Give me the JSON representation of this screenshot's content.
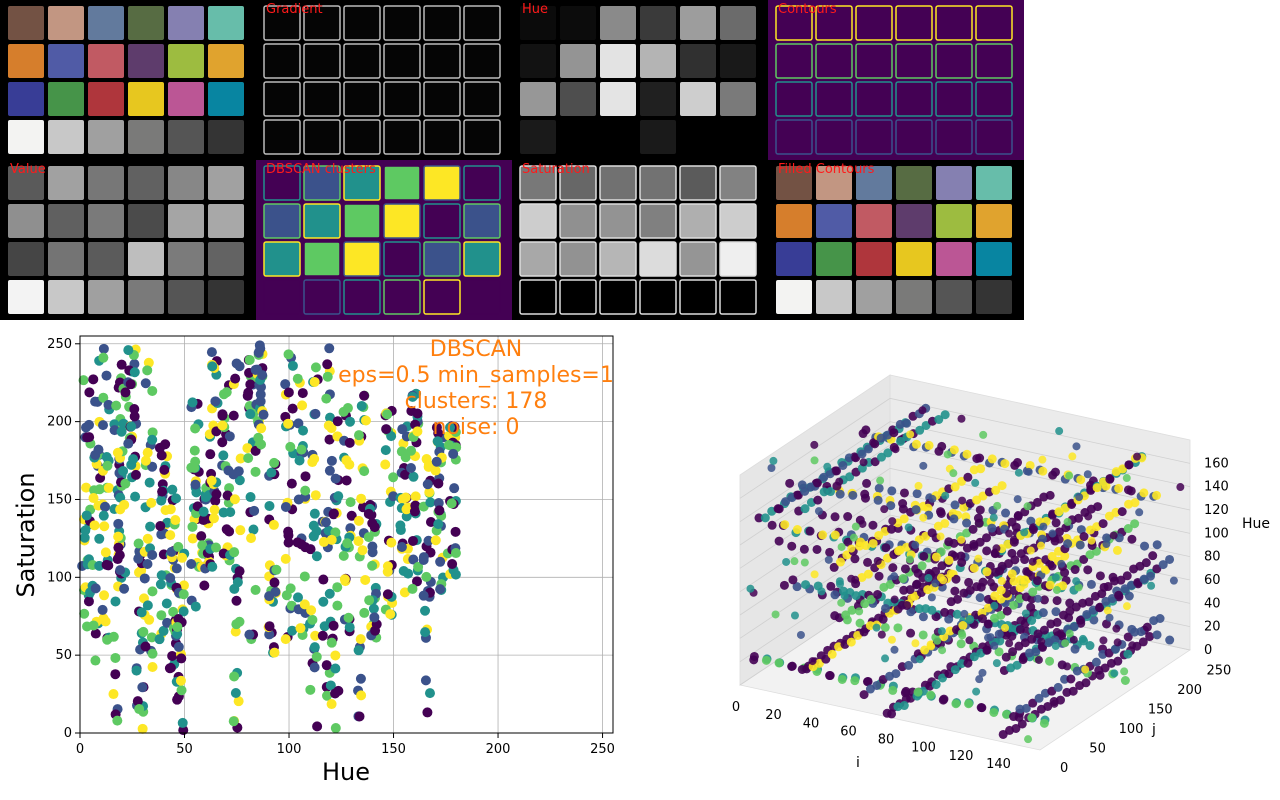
{
  "panels": [
    {
      "title": "",
      "kind": "original"
    },
    {
      "title": "Gradient",
      "kind": "gradient"
    },
    {
      "title": "Hue",
      "kind": "hue"
    },
    {
      "title": "Contours",
      "kind": "contours"
    },
    {
      "title": "Value",
      "kind": "value"
    },
    {
      "title": "DBSCAN clusters",
      "kind": "dbscan"
    },
    {
      "title": "Saturation",
      "kind": "saturation"
    },
    {
      "title": "Filled Contours",
      "kind": "filled"
    }
  ],
  "checker_colors": [
    "#735244",
    "#c29682",
    "#627a9d",
    "#576c43",
    "#8580b1",
    "#67bdaa",
    "#d67e2c",
    "#505ba6",
    "#c15a63",
    "#5e3c6c",
    "#9dbc40",
    "#e0a32e",
    "#383d96",
    "#469449",
    "#af363c",
    "#e7c71f",
    "#bb5695",
    "#0885a1",
    "#f3f3f2",
    "#c8c8c8",
    "#a0a0a0",
    "#7a7a79",
    "#555555",
    "#343434"
  ],
  "colors": {
    "panel_title": "#ff1a1a",
    "annotation": "#ff7f0e",
    "viridis": [
      "#440154",
      "#3b528b",
      "#21918c",
      "#5ec962",
      "#fde725"
    ]
  },
  "chart_data": [
    {
      "type": "scatter",
      "title": "",
      "xlabel": "Hue",
      "ylabel": "Saturation",
      "xlim": [
        0,
        255
      ],
      "ylim": [
        0,
        255
      ],
      "xticks": [
        0,
        50,
        100,
        150,
        200,
        250
      ],
      "yticks": [
        0,
        50,
        100,
        150,
        200,
        250
      ],
      "grid": true,
      "annotation": [
        "DBSCAN",
        "eps=0.5 min_samples=1",
        "clusters: 178",
        "noise: 0"
      ],
      "clusters": [
        {
          "hue": 3,
          "sat_range": [
            50,
            250
          ]
        },
        {
          "hue": 8,
          "sat_range": [
            45,
            240
          ]
        },
        {
          "hue": 12,
          "sat_range": [
            55,
            250
          ]
        },
        {
          "hue": 18,
          "sat_range": [
            0,
            245
          ]
        },
        {
          "hue": 20,
          "sat_range": [
            90,
            250
          ]
        },
        {
          "hue": 25,
          "sat_range": [
            150,
            250
          ]
        },
        {
          "hue": 29,
          "sat_range": [
            0,
            130
          ]
        },
        {
          "hue": 33,
          "sat_range": [
            40,
            240
          ]
        },
        {
          "hue": 40,
          "sat_range": [
            60,
            200
          ]
        },
        {
          "hue": 45,
          "sat_range": [
            40,
            170
          ]
        },
        {
          "hue": 48,
          "sat_range": [
            0,
            120
          ]
        },
        {
          "hue": 55,
          "sat_range": [
            80,
            220
          ]
        },
        {
          "hue": 60,
          "sat_range": [
            90,
            160
          ]
        },
        {
          "hue": 64,
          "sat_range": [
            100,
            250
          ]
        },
        {
          "hue": 70,
          "sat_range": [
            110,
            230
          ]
        },
        {
          "hue": 75,
          "sat_range": [
            0,
            240
          ]
        },
        {
          "hue": 82,
          "sat_range": [
            60,
            250
          ]
        },
        {
          "hue": 86,
          "sat_range": [
            180,
            250
          ]
        },
        {
          "hue": 92,
          "sat_range": [
            50,
            180
          ]
        },
        {
          "hue": 100,
          "sat_range": [
            60,
            250
          ]
        },
        {
          "hue": 106,
          "sat_range": [
            60,
            230
          ]
        },
        {
          "hue": 112,
          "sat_range": [
            0,
            240
          ]
        },
        {
          "hue": 118,
          "sat_range": [
            20,
            250
          ]
        },
        {
          "hue": 122,
          "sat_range": [
            0,
            230
          ]
        },
        {
          "hue": 128,
          "sat_range": [
            60,
            210
          ]
        },
        {
          "hue": 135,
          "sat_range": [
            10,
            220
          ]
        },
        {
          "hue": 140,
          "sat_range": [
            60,
            150
          ]
        },
        {
          "hue": 148,
          "sat_range": [
            70,
            210
          ]
        },
        {
          "hue": 155,
          "sat_range": [
            90,
            200
          ]
        },
        {
          "hue": 160,
          "sat_range": [
            80,
            220
          ]
        },
        {
          "hue": 166,
          "sat_range": [
            0,
            180
          ]
        },
        {
          "hue": 172,
          "sat_range": [
            90,
            200
          ]
        },
        {
          "hue": 178,
          "sat_range": [
            90,
            200
          ]
        }
      ]
    },
    {
      "type": "scatter",
      "title": "",
      "xlabel": "i",
      "ylabel": "j",
      "zlabel": "Hue",
      "xlim": [
        0,
        160
      ],
      "ylim": [
        0,
        256
      ],
      "zlim": [
        0,
        180
      ],
      "xticks": [
        0,
        20,
        40,
        60,
        80,
        100,
        120,
        140
      ],
      "yticks": [
        0,
        50,
        100,
        150,
        200,
        250
      ],
      "zticks": [
        0,
        20,
        40,
        60,
        80,
        100,
        120,
        140,
        160
      ],
      "grid": true
    }
  ]
}
